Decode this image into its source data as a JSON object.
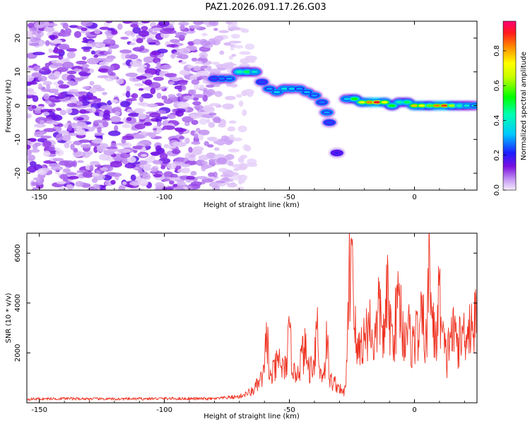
{
  "title": "PAZ1.2026.091.17.26.G03",
  "chart_data": [
    {
      "type": "heatmap",
      "xlabel": "Height of straight line (km)",
      "ylabel": "Frequency (Hz)",
      "xlim": [
        -155,
        25
      ],
      "ylim": [
        -25,
        25
      ],
      "xticks": [
        -150,
        -100,
        -50,
        0
      ],
      "yticks": [
        20,
        10,
        0,
        -10,
        -20
      ],
      "colorbar": {
        "label": "Normalized spectral amplitude",
        "range": [
          0,
          0.97
        ],
        "ticks": [
          0.0,
          0.2,
          0.4,
          0.6,
          0.8
        ]
      },
      "ridge": [
        {
          "x": -80,
          "y": 8,
          "v": 0.25
        },
        {
          "x": -77,
          "y": 8,
          "v": 0.28
        },
        {
          "x": -74,
          "y": 8,
          "v": 0.3
        },
        {
          "x": -70,
          "y": 10,
          "v": 0.45
        },
        {
          "x": -67,
          "y": 10,
          "v": 0.5
        },
        {
          "x": -64,
          "y": 10,
          "v": 0.4
        },
        {
          "x": -61,
          "y": 7,
          "v": 0.25
        },
        {
          "x": -58,
          "y": 5,
          "v": 0.3
        },
        {
          "x": -55,
          "y": 4,
          "v": 0.35
        },
        {
          "x": -52,
          "y": 5,
          "v": 0.38
        },
        {
          "x": -49,
          "y": 5,
          "v": 0.35
        },
        {
          "x": -46,
          "y": 5,
          "v": 0.3
        },
        {
          "x": -43,
          "y": 4,
          "v": 0.32
        },
        {
          "x": -40,
          "y": 3,
          "v": 0.3
        },
        {
          "x": -37,
          "y": 1,
          "v": 0.28
        },
        {
          "x": -35,
          "y": -2,
          "v": 0.3
        },
        {
          "x": -34,
          "y": -5,
          "v": 0.25
        },
        {
          "x": -31,
          "y": -14,
          "v": 0.2
        },
        {
          "x": -27,
          "y": 2,
          "v": 0.35
        },
        {
          "x": -24,
          "y": 2,
          "v": 0.55
        },
        {
          "x": -21,
          "y": 1,
          "v": 0.7
        },
        {
          "x": -18,
          "y": 1,
          "v": 0.85
        },
        {
          "x": -15,
          "y": 1,
          "v": 0.95
        },
        {
          "x": -12,
          "y": 1,
          "v": 0.75
        },
        {
          "x": -9,
          "y": 0,
          "v": 0.55
        },
        {
          "x": -6,
          "y": 1,
          "v": 0.45
        },
        {
          "x": -3,
          "y": 1,
          "v": 0.5
        },
        {
          "x": 0,
          "y": 0,
          "v": 0.8
        },
        {
          "x": 3,
          "y": 0,
          "v": 0.75
        },
        {
          "x": 6,
          "y": 0,
          "v": 0.6
        },
        {
          "x": 9,
          "y": 0,
          "v": 0.85
        },
        {
          "x": 12,
          "y": 0,
          "v": 0.9
        },
        {
          "x": 15,
          "y": 0,
          "v": 0.65
        },
        {
          "x": 18,
          "y": 0,
          "v": 0.45
        },
        {
          "x": 21,
          "y": 0,
          "v": 0.4
        },
        {
          "x": 24,
          "y": 0,
          "v": 0.35
        }
      ]
    },
    {
      "type": "line",
      "xlabel": "Height of straight line (km)",
      "ylabel": "SNR (10 * v/v)",
      "xlim": [
        -155,
        25
      ],
      "ylim": [
        0,
        6800
      ],
      "xticks": [
        -150,
        -100,
        -50,
        0
      ],
      "yticks": [
        2000,
        4000,
        6000
      ],
      "color": "#ee3322",
      "series": [
        {
          "name": "SNR",
          "points": [
            [
              -155,
              150
            ],
            [
              -140,
              170
            ],
            [
              -120,
              150
            ],
            [
              -100,
              170
            ],
            [
              -80,
              160
            ],
            [
              -70,
              250
            ],
            [
              -65,
              450
            ],
            [
              -62,
              800
            ],
            [
              -60,
              1200
            ],
            [
              -59,
              3200
            ],
            [
              -58,
              900
            ],
            [
              -56,
              1300
            ],
            [
              -54,
              1700
            ],
            [
              -52,
              1200
            ],
            [
              -50,
              2600
            ],
            [
              -48,
              1100
            ],
            [
              -46,
              1500
            ],
            [
              -44,
              2200
            ],
            [
              -42,
              1300
            ],
            [
              -40,
              1800
            ],
            [
              -39,
              3500
            ],
            [
              -38,
              1200
            ],
            [
              -36,
              1300
            ],
            [
              -35,
              2700
            ],
            [
              -34,
              900
            ],
            [
              -32,
              800
            ],
            [
              -30,
              600
            ],
            [
              -29,
              400
            ],
            [
              -28,
              450
            ],
            [
              -27,
              1500
            ],
            [
              -26,
              5200
            ],
            [
              -25,
              6800
            ],
            [
              -24,
              3500
            ],
            [
              -23,
              1800
            ],
            [
              -22,
              2300
            ],
            [
              -20,
              2600
            ],
            [
              -18,
              3200
            ],
            [
              -16,
              2300
            ],
            [
              -14,
              3800
            ],
            [
              -12,
              2500
            ],
            [
              -11,
              4300
            ],
            [
              -9,
              2600
            ],
            [
              -8,
              3000
            ],
            [
              -7,
              3600
            ],
            [
              -6,
              4400
            ],
            [
              -5,
              3000
            ],
            [
              -4,
              2600
            ],
            [
              -3,
              3400
            ],
            [
              -2,
              2700
            ],
            [
              -1,
              2300
            ],
            [
              0,
              2600
            ],
            [
              1,
              2800
            ],
            [
              2,
              2600
            ],
            [
              3,
              3400
            ],
            [
              4,
              2800
            ],
            [
              5,
              2300
            ],
            [
              6,
              6300
            ],
            [
              7,
              3400
            ],
            [
              8,
              2600
            ],
            [
              9,
              2800
            ],
            [
              10,
              4600
            ],
            [
              11,
              2700
            ],
            [
              12,
              2200
            ],
            [
              13,
              1600
            ],
            [
              14,
              2800
            ],
            [
              16,
              2700
            ],
            [
              18,
              2400
            ],
            [
              20,
              2900
            ],
            [
              22,
              3100
            ],
            [
              24,
              3200
            ],
            [
              25,
              3300
            ]
          ]
        }
      ]
    }
  ]
}
